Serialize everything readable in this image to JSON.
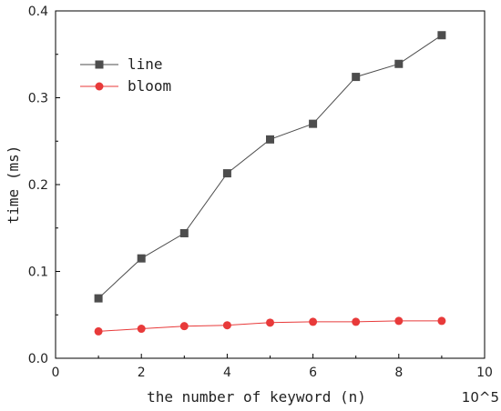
{
  "chart_data": {
    "type": "line",
    "x": [
      1,
      2,
      3,
      4,
      5,
      6,
      7,
      8,
      9
    ],
    "series": [
      {
        "name": "line",
        "values": [
          0.069,
          0.115,
          0.144,
          0.213,
          0.252,
          0.27,
          0.324,
          0.339,
          0.372
        ],
        "color": "#4d4d4d",
        "marker": "square"
      },
      {
        "name": "bloom",
        "values": [
          0.031,
          0.034,
          0.037,
          0.038,
          0.041,
          0.042,
          0.042,
          0.043,
          0.043
        ],
        "color": "#e83a3a",
        "marker": "circle"
      }
    ],
    "xlabel": "the number of keyword (n)",
    "x_exponent_label": "10^5",
    "ylabel": "time (ms)",
    "xlim": [
      0,
      10
    ],
    "ylim": [
      0,
      0.4
    ],
    "xticks": [
      0,
      2,
      4,
      6,
      8,
      10
    ],
    "yticks": [
      0.0,
      0.1,
      0.2,
      0.3,
      0.4
    ],
    "ytick_labels": [
      "0.0",
      "0.1",
      "0.2",
      "0.3",
      "0.4"
    ],
    "grid": false,
    "legend_position": "top-left"
  }
}
